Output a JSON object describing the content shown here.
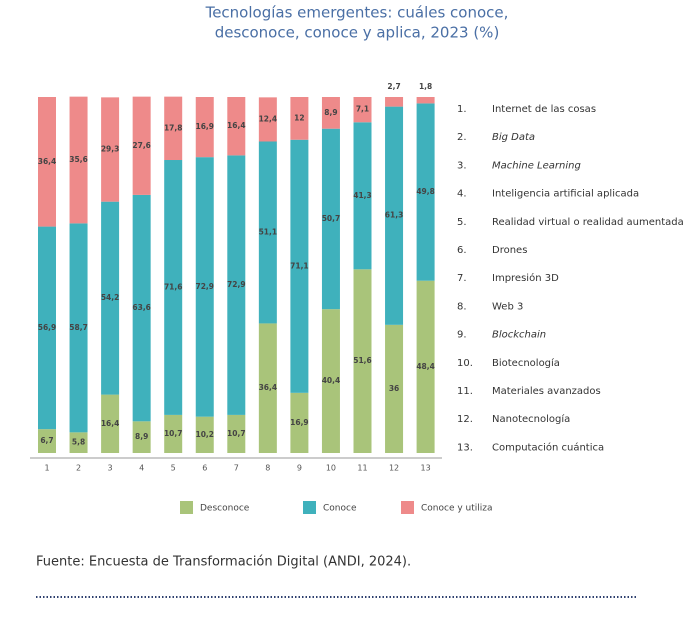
{
  "chart_data": {
    "type": "stacked_bar",
    "title": "Tecnologías emergentes: cuáles conoce,",
    "subtitle": "desconoce, conoce y aplica, 2023 (%)",
    "categories": [
      "1",
      "2",
      "3",
      "4",
      "5",
      "6",
      "7",
      "8",
      "9",
      "10",
      "11",
      "12",
      "13"
    ],
    "series": [
      {
        "name": "Desconoce",
        "color": "#a9c47a",
        "values": [
          6.7,
          5.8,
          16.4,
          8.9,
          10.7,
          10.2,
          10.7,
          36.4,
          16.9,
          40.4,
          51.6,
          36,
          48.4
        ],
        "value_labels": [
          "6,7",
          "5,8",
          "16,4",
          "8,9",
          "10,7",
          "10,2",
          "10,7",
          "36,4",
          "16,9",
          "40,4",
          "51,6",
          "36",
          "48,4"
        ]
      },
      {
        "name": "Conoce",
        "color": "#3fb1bc",
        "values": [
          56.9,
          58.7,
          54.2,
          63.6,
          71.6,
          72.9,
          72.9,
          51.1,
          71.1,
          50.7,
          41.3,
          61.3,
          49.8
        ],
        "value_labels": [
          "56,9",
          "58,7",
          "54,2",
          "63,6",
          "71,6",
          "72,9",
          "72,9",
          "51,1",
          "71,1",
          "50,7",
          "41,3",
          "61,3",
          "49,8"
        ]
      },
      {
        "name": "Conoce y utiliza",
        "color": "#ee8a8a",
        "values": [
          36.4,
          35.6,
          29.3,
          27.6,
          17.8,
          16.9,
          16.4,
          12.4,
          12,
          8.9,
          7.1,
          2.7,
          1.8
        ],
        "value_labels": [
          "36,4",
          "35,6",
          "29,3",
          "27,6",
          "17,8",
          "16,9",
          "16,4",
          "12,4",
          "12",
          "8,9",
          "7,1",
          "2,7",
          "1,8"
        ]
      }
    ],
    "key": [
      {
        "number": "1.",
        "label": "Internet de las cosas",
        "italic": false
      },
      {
        "number": "2.",
        "label": "Big Data",
        "italic": true
      },
      {
        "number": "3.",
        "label": "Machine Learning",
        "italic": true
      },
      {
        "number": "4.",
        "label": "Inteligencia artificial aplicada",
        "italic": false
      },
      {
        "number": "5.",
        "label": "Realidad virtual o realidad aumentada",
        "italic": false
      },
      {
        "number": "6.",
        "label": "Drones",
        "italic": false
      },
      {
        "number": "7.",
        "label": "Impresión 3D",
        "italic": false
      },
      {
        "number": "8.",
        "label": "Web 3",
        "italic": false
      },
      {
        "number": "9.",
        "label": "Blockchain",
        "italic": true
      },
      {
        "number": "10.",
        "label": "Biotecnología",
        "italic": false
      },
      {
        "number": "11.",
        "label": "Materiales avanzados",
        "italic": false
      },
      {
        "number": "12.",
        "label": "Nanotecnología",
        "italic": false
      },
      {
        "number": "13.",
        "label": "Computación cuántica",
        "italic": false
      }
    ],
    "source": "Fuente: Encuesta de Transformación Digital (ANDI, 2024)."
  }
}
